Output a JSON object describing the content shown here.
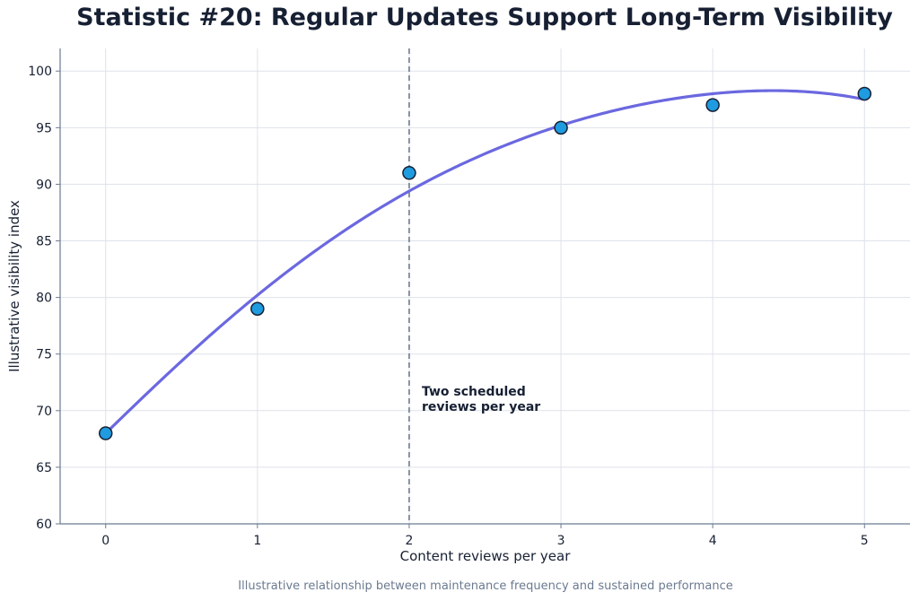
{
  "chart_data": {
    "type": "scatter",
    "title": "Statistic #20: Regular Updates Support Long-Term Visibility",
    "caption": "Illustrative relationship between maintenance frequency and sustained performance",
    "xlabel": "Content reviews per year",
    "ylabel": "Illustrative visibility index",
    "xlim": [
      -0.3,
      5.3
    ],
    "ylim": [
      60,
      102
    ],
    "x_ticks": [
      0,
      1,
      2,
      3,
      4,
      5
    ],
    "y_ticks": [
      60,
      65,
      70,
      75,
      80,
      85,
      90,
      95,
      100
    ],
    "grid": true,
    "points": {
      "x": [
        0,
        1,
        2,
        3,
        4,
        5
      ],
      "y": [
        68,
        79,
        91,
        95,
        97,
        98
      ]
    },
    "trend": {
      "x": [
        0,
        1,
        2,
        3,
        4,
        5
      ],
      "y": [
        68,
        80.2,
        89.4,
        95.2,
        98,
        97.5
      ]
    },
    "reference_line": {
      "x": 2,
      "label_lines": [
        "Two scheduled",
        "reviews per year"
      ]
    },
    "colors": {
      "marker": "#1f9be0",
      "marker_edge": "#172033",
      "trend": "#6b68e0",
      "reference": "#6b7a90",
      "grid": "#dde2ea",
      "axis": "#6b7a90"
    }
  }
}
